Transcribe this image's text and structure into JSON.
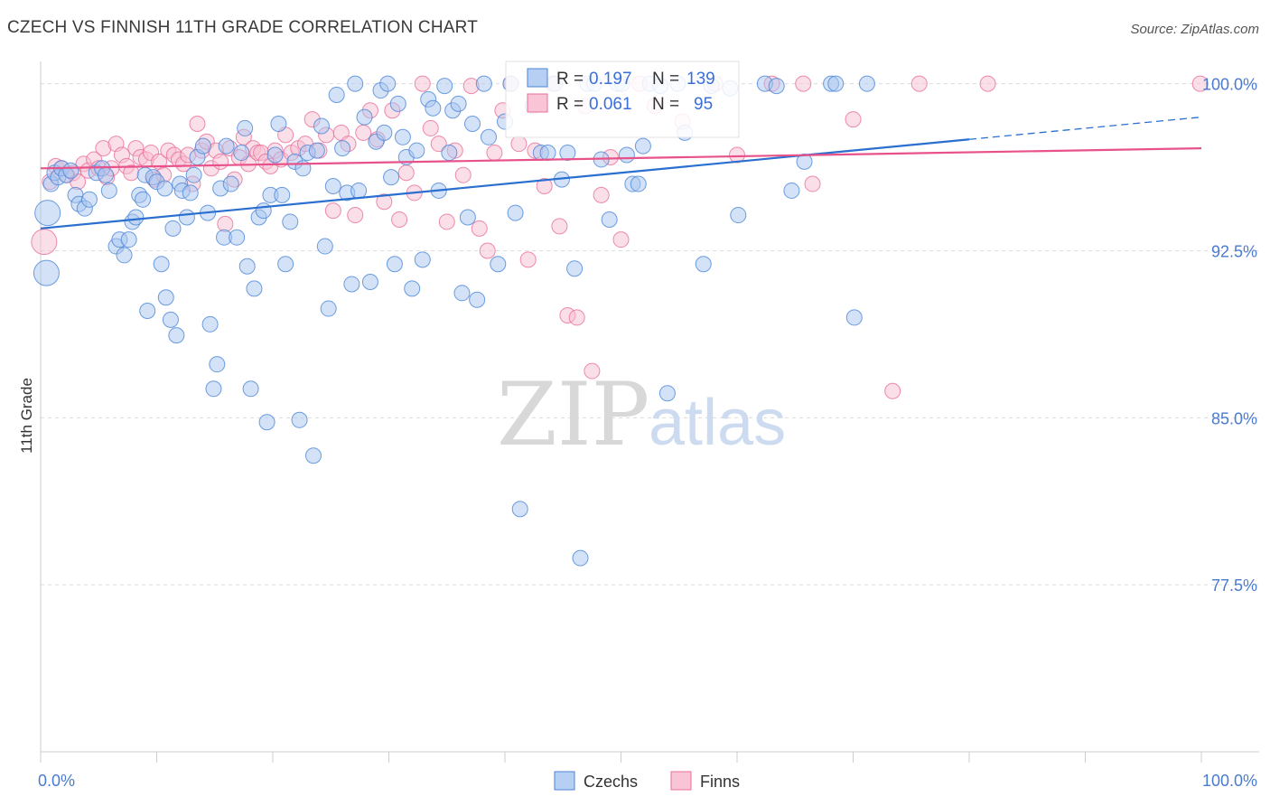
{
  "title": "CZECH VS FINNISH 11TH GRADE CORRELATION CHART",
  "source": "Source: ZipAtlas.com",
  "chart_data": {
    "type": "scatter",
    "title": "CZECH VS FINNISH 11TH GRADE CORRELATION CHART",
    "xlabel": "",
    "ylabel": "11th Grade",
    "xlim": [
      0,
      100
    ],
    "ylim": [
      70.0,
      101.0
    ],
    "x_tick_labels": [
      "0.0%",
      "100.0%"
    ],
    "y_ticks": [
      77.5,
      85.0,
      92.5,
      100.0
    ],
    "y_tick_labels": [
      "77.5%",
      "85.0%",
      "92.5%",
      "100.0%"
    ],
    "grid": "horizontal dashed",
    "legend_position": "bottom-center",
    "colors": {
      "czechs": "#4a86d8",
      "finns": "#e86e9a"
    },
    "stats": [
      {
        "series": "Czechs",
        "r_label": "R =",
        "r": "0.197",
        "n_label": "N =",
        "n": "139"
      },
      {
        "series": "Finns",
        "r_label": "R =",
        "r": "0.061",
        "n_label": "N =",
        "n": "95"
      }
    ],
    "trend_lines": [
      {
        "series": "Czechs",
        "x0": 0,
        "y0": 93.5,
        "x1": 80,
        "y1": 97.5,
        "dashed_to": 100,
        "dashed_y": 98.5
      },
      {
        "series": "Finns",
        "x0": 0,
        "y0": 96.2,
        "x1": 100,
        "y1": 97.1
      }
    ],
    "series": [
      {
        "name": "Czechs",
        "points": [
          [
            0.5,
            91.5
          ],
          [
            0.6,
            94.2
          ],
          [
            0.9,
            95.5
          ],
          [
            1.2,
            96.0
          ],
          [
            1.5,
            95.8
          ],
          [
            1.8,
            96.2
          ],
          [
            2.2,
            95.9
          ],
          [
            2.6,
            96.1
          ],
          [
            3.0,
            95.0
          ],
          [
            3.3,
            94.6
          ],
          [
            3.8,
            94.4
          ],
          [
            4.2,
            94.8
          ],
          [
            4.8,
            96.0
          ],
          [
            5.3,
            96.2
          ],
          [
            5.6,
            95.9
          ],
          [
            5.9,
            95.2
          ],
          [
            6.5,
            92.7
          ],
          [
            6.8,
            93.0
          ],
          [
            7.2,
            92.3
          ],
          [
            7.6,
            93.0
          ],
          [
            7.9,
            93.8
          ],
          [
            8.2,
            94.0
          ],
          [
            8.5,
            95.0
          ],
          [
            8.8,
            94.8
          ],
          [
            9.0,
            95.9
          ],
          [
            9.2,
            89.8
          ],
          [
            9.7,
            95.8
          ],
          [
            10.0,
            95.6
          ],
          [
            10.4,
            91.9
          ],
          [
            10.7,
            95.3
          ],
          [
            10.8,
            90.4
          ],
          [
            11.2,
            89.4
          ],
          [
            11.4,
            93.5
          ],
          [
            11.7,
            88.7
          ],
          [
            12.0,
            95.5
          ],
          [
            12.2,
            95.2
          ],
          [
            12.6,
            94.0
          ],
          [
            12.9,
            95.1
          ],
          [
            13.2,
            95.9
          ],
          [
            13.5,
            96.7
          ],
          [
            14.0,
            97.2
          ],
          [
            14.4,
            94.2
          ],
          [
            14.6,
            89.2
          ],
          [
            14.9,
            86.3
          ],
          [
            15.2,
            87.4
          ],
          [
            15.5,
            95.3
          ],
          [
            15.8,
            93.1
          ],
          [
            16.0,
            97.2
          ],
          [
            16.4,
            95.5
          ],
          [
            16.9,
            93.1
          ],
          [
            17.3,
            96.9
          ],
          [
            17.6,
            98.0
          ],
          [
            17.8,
            91.8
          ],
          [
            18.1,
            86.3
          ],
          [
            18.4,
            90.8
          ],
          [
            18.8,
            94.0
          ],
          [
            19.2,
            94.3
          ],
          [
            19.5,
            84.8
          ],
          [
            19.8,
            95.0
          ],
          [
            20.2,
            96.8
          ],
          [
            20.5,
            98.2
          ],
          [
            20.8,
            95.0
          ],
          [
            21.1,
            91.9
          ],
          [
            21.5,
            93.8
          ],
          [
            21.9,
            96.5
          ],
          [
            22.3,
            84.9
          ],
          [
            22.6,
            96.2
          ],
          [
            23.0,
            96.9
          ],
          [
            23.5,
            83.3
          ],
          [
            23.8,
            97.0
          ],
          [
            24.2,
            98.1
          ],
          [
            24.5,
            92.7
          ],
          [
            24.8,
            89.9
          ],
          [
            25.2,
            95.4
          ],
          [
            25.5,
            99.5
          ],
          [
            26.0,
            97.1
          ],
          [
            26.4,
            95.1
          ],
          [
            26.8,
            91.0
          ],
          [
            27.1,
            100.0
          ],
          [
            27.4,
            95.2
          ],
          [
            27.9,
            98.5
          ],
          [
            28.4,
            91.1
          ],
          [
            28.9,
            97.4
          ],
          [
            29.3,
            99.7
          ],
          [
            29.6,
            97.8
          ],
          [
            29.9,
            100.0
          ],
          [
            30.2,
            95.8
          ],
          [
            30.5,
            91.9
          ],
          [
            30.8,
            99.1
          ],
          [
            31.2,
            97.6
          ],
          [
            31.5,
            96.7
          ],
          [
            32.0,
            90.8
          ],
          [
            32.4,
            97.0
          ],
          [
            32.9,
            92.1
          ],
          [
            33.4,
            99.3
          ],
          [
            33.8,
            98.9
          ],
          [
            34.3,
            95.2
          ],
          [
            34.8,
            99.9
          ],
          [
            35.2,
            96.9
          ],
          [
            35.5,
            98.8
          ],
          [
            36.0,
            99.1
          ],
          [
            36.3,
            90.6
          ],
          [
            36.8,
            94.0
          ],
          [
            37.2,
            98.2
          ],
          [
            37.6,
            90.3
          ],
          [
            38.2,
            100.0
          ],
          [
            38.6,
            97.6
          ],
          [
            39.4,
            91.9
          ],
          [
            40.0,
            98.3
          ],
          [
            40.5,
            100.0
          ],
          [
            40.9,
            94.2
          ],
          [
            41.3,
            80.9
          ],
          [
            42.4,
            99.0
          ],
          [
            43.1,
            96.9
          ],
          [
            43.7,
            96.9
          ],
          [
            44.3,
            100.0
          ],
          [
            44.9,
            95.7
          ],
          [
            45.4,
            96.9
          ],
          [
            46.0,
            91.7
          ],
          [
            46.5,
            78.7
          ],
          [
            47.1,
            100.0
          ],
          [
            47.7,
            100.0
          ],
          [
            48.3,
            96.6
          ],
          [
            49.0,
            93.9
          ],
          [
            49.7,
            100.0
          ],
          [
            50.1,
            100.0
          ],
          [
            50.5,
            96.8
          ],
          [
            51.0,
            95.5
          ],
          [
            51.5,
            95.5
          ],
          [
            51.9,
            97.2
          ],
          [
            52.5,
            100.0
          ],
          [
            53.4,
            99.9
          ],
          [
            54.0,
            86.1
          ],
          [
            54.9,
            100.0
          ],
          [
            55.5,
            97.8
          ],
          [
            57.1,
            91.9
          ],
          [
            57.8,
            99.9
          ],
          [
            59.4,
            99.8
          ],
          [
            60.1,
            94.1
          ],
          [
            62.4,
            100.0
          ],
          [
            63.4,
            99.9
          ],
          [
            64.7,
            95.2
          ],
          [
            65.8,
            96.5
          ],
          [
            68.1,
            100.0
          ],
          [
            68.5,
            100.0
          ],
          [
            70.1,
            89.5
          ],
          [
            71.2,
            100.0
          ]
        ]
      },
      {
        "name": "Finns",
        "points": [
          [
            0.3,
            92.9
          ],
          [
            0.8,
            95.6
          ],
          [
            1.3,
            96.3
          ],
          [
            1.8,
            96.2
          ],
          [
            2.3,
            95.9
          ],
          [
            2.8,
            96.0
          ],
          [
            3.2,
            95.6
          ],
          [
            3.7,
            96.4
          ],
          [
            4.1,
            96.1
          ],
          [
            4.6,
            96.6
          ],
          [
            5.0,
            96.2
          ],
          [
            5.4,
            97.1
          ],
          [
            5.7,
            95.8
          ],
          [
            6.1,
            96.2
          ],
          [
            6.5,
            97.3
          ],
          [
            7.0,
            96.8
          ],
          [
            7.4,
            96.3
          ],
          [
            7.8,
            96.0
          ],
          [
            8.2,
            97.1
          ],
          [
            8.6,
            96.7
          ],
          [
            9.1,
            96.6
          ],
          [
            9.5,
            96.9
          ],
          [
            9.8,
            95.7
          ],
          [
            10.2,
            96.5
          ],
          [
            10.6,
            95.9
          ],
          [
            11.0,
            97.0
          ],
          [
            11.5,
            96.8
          ],
          [
            11.9,
            96.6
          ],
          [
            12.3,
            96.4
          ],
          [
            12.7,
            96.8
          ],
          [
            13.1,
            95.5
          ],
          [
            13.5,
            98.2
          ],
          [
            13.9,
            97.0
          ],
          [
            14.3,
            97.4
          ],
          [
            14.7,
            96.2
          ],
          [
            15.1,
            97.0
          ],
          [
            15.5,
            96.5
          ],
          [
            15.9,
            93.7
          ],
          [
            16.3,
            97.1
          ],
          [
            16.7,
            95.7
          ],
          [
            17.1,
            96.7
          ],
          [
            17.5,
            97.6
          ],
          [
            17.9,
            96.4
          ],
          [
            18.3,
            97.1
          ],
          [
            18.7,
            96.9
          ],
          [
            19.0,
            96.9
          ],
          [
            19.4,
            96.5
          ],
          [
            19.8,
            96.3
          ],
          [
            20.2,
            97.0
          ],
          [
            20.7,
            96.6
          ],
          [
            21.1,
            97.7
          ],
          [
            21.6,
            96.9
          ],
          [
            22.2,
            97.1
          ],
          [
            22.8,
            97.3
          ],
          [
            23.4,
            98.4
          ],
          [
            24.0,
            97.0
          ],
          [
            24.6,
            97.7
          ],
          [
            25.2,
            94.3
          ],
          [
            25.9,
            97.8
          ],
          [
            26.5,
            97.3
          ],
          [
            27.1,
            94.1
          ],
          [
            27.8,
            97.8
          ],
          [
            28.4,
            98.8
          ],
          [
            29.0,
            97.5
          ],
          [
            29.6,
            94.7
          ],
          [
            30.3,
            98.8
          ],
          [
            30.9,
            93.9
          ],
          [
            31.5,
            96.0
          ],
          [
            32.2,
            95.1
          ],
          [
            32.9,
            100.0
          ],
          [
            33.6,
            98.0
          ],
          [
            34.3,
            97.3
          ],
          [
            35.0,
            93.8
          ],
          [
            35.7,
            97.0
          ],
          [
            36.4,
            95.9
          ],
          [
            37.1,
            99.9
          ],
          [
            37.8,
            93.5
          ],
          [
            38.5,
            92.5
          ],
          [
            39.1,
            96.9
          ],
          [
            39.8,
            98.8
          ],
          [
            40.5,
            100.0
          ],
          [
            41.2,
            97.3
          ],
          [
            42.0,
            92.1
          ],
          [
            42.6,
            97.0
          ],
          [
            43.4,
            95.4
          ],
          [
            44.1,
            100.0
          ],
          [
            44.7,
            93.6
          ],
          [
            45.4,
            89.6
          ],
          [
            46.2,
            89.5
          ],
          [
            46.9,
            99.0
          ],
          [
            47.5,
            87.1
          ],
          [
            48.3,
            95.0
          ],
          [
            49.1,
            96.7
          ],
          [
            50.0,
            93.0
          ],
          [
            51.6,
            100.0
          ],
          [
            52.9,
            99.0
          ],
          [
            55.3,
            98.3
          ],
          [
            58.1,
            100.0
          ],
          [
            60.0,
            96.8
          ],
          [
            63.0,
            100.0
          ],
          [
            65.7,
            100.0
          ],
          [
            66.5,
            95.5
          ],
          [
            70.0,
            98.4
          ],
          [
            73.4,
            86.2
          ],
          [
            75.7,
            100.0
          ],
          [
            81.6,
            100.0
          ],
          [
            99.9,
            100.0
          ]
        ]
      }
    ]
  }
}
